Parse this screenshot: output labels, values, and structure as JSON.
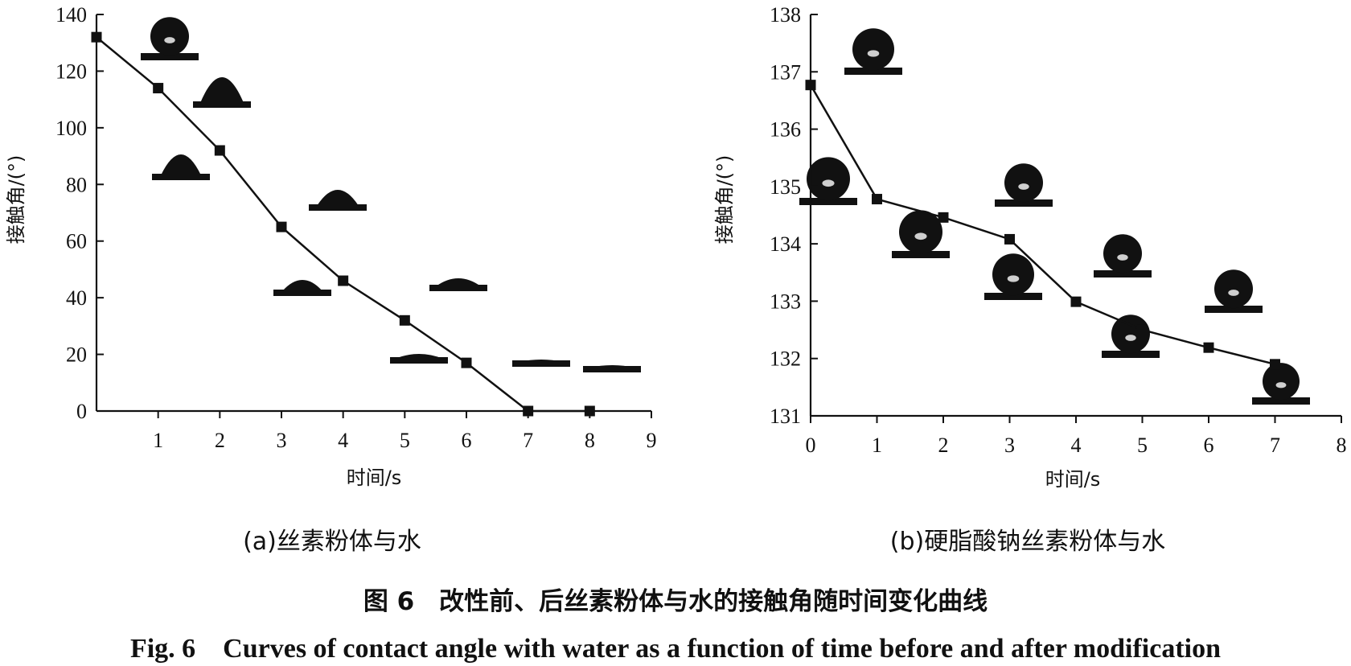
{
  "chart_data": [
    {
      "type": "line",
      "subtitle": "(a)丝素粉体与水",
      "xlabel": "时间/s",
      "ylabel": "接触角/(°)",
      "xlim": [
        0,
        9
      ],
      "ylim": [
        0,
        140
      ],
      "xticks": [
        "1",
        "2",
        "3",
        "4",
        "5",
        "6",
        "7",
        "8",
        "9"
      ],
      "yticks": [
        "0",
        "20",
        "40",
        "60",
        "80",
        "100",
        "120",
        "140"
      ],
      "series": [
        {
          "x": [
            0,
            1,
            2,
            3,
            4,
            5,
            6,
            7,
            8
          ],
          "y": [
            132,
            114,
            92,
            65,
            46,
            32,
            17,
            0,
            0
          ]
        }
      ],
      "marker": "square",
      "grid": false
    },
    {
      "type": "line",
      "subtitle": "(b)硬脂酸钠丝素粉体与水",
      "xlabel": "时间/s",
      "ylabel": "接触角/(°)",
      "xlim": [
        0,
        8
      ],
      "ylim": [
        131,
        138
      ],
      "xticks": [
        "0",
        "1",
        "2",
        "3",
        "4",
        "5",
        "6",
        "7",
        "8"
      ],
      "yticks": [
        "131",
        "132",
        "133",
        "134",
        "135",
        "136",
        "137",
        "138"
      ],
      "series": [
        {
          "x": [
            0,
            1,
            2,
            3,
            4,
            5,
            6,
            7
          ],
          "y": [
            136.77,
            134.78,
            134.46,
            134.08,
            132.99,
            132.5,
            132.19,
            131.9
          ]
        }
      ],
      "marker": "square",
      "grid": false
    }
  ],
  "caption": {
    "cn": "图 6　改性前、后丝素粉体与水的接触角随时间变化曲线",
    "en": "Fig. 6　Curves of contact angle with water as a function of time before and after modification"
  }
}
